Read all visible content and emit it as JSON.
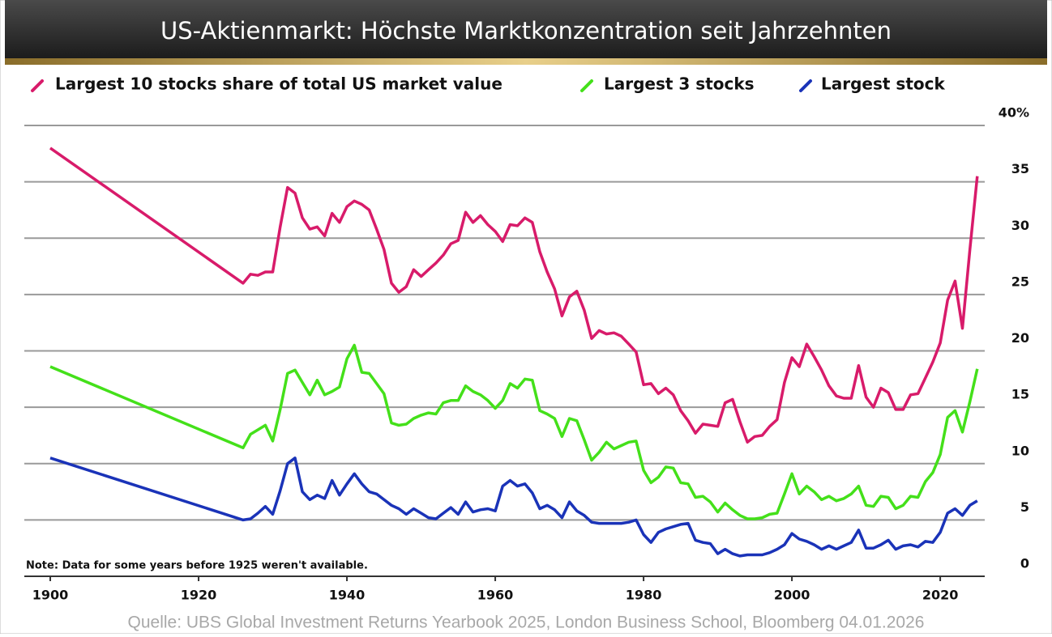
{
  "chart_data": {
    "type": "line",
    "title": "US-Aktienmarkt: Höchste Marktkonzentration seit Jahrzehnten",
    "annotation": "Note: Data for some years before 1925 weren't available.",
    "source": "Quelle: UBS Global Investment Returns Yearbook 2025, London Business School, Bloomberg 04.01.2026",
    "x": [
      1900,
      1926,
      1927,
      1928,
      1929,
      1930,
      1931,
      1932,
      1933,
      1934,
      1935,
      1936,
      1937,
      1938,
      1939,
      1940,
      1941,
      1942,
      1943,
      1944,
      1945,
      1946,
      1947,
      1948,
      1949,
      1950,
      1951,
      1952,
      1953,
      1954,
      1955,
      1956,
      1957,
      1958,
      1959,
      1960,
      1961,
      1962,
      1963,
      1964,
      1965,
      1966,
      1967,
      1968,
      1969,
      1970,
      1971,
      1972,
      1973,
      1974,
      1975,
      1976,
      1977,
      1978,
      1979,
      1980,
      1981,
      1982,
      1983,
      1984,
      1985,
      1986,
      1987,
      1988,
      1989,
      1990,
      1991,
      1992,
      1993,
      1994,
      1995,
      1996,
      1997,
      1998,
      1999,
      2000,
      2001,
      2002,
      2003,
      2004,
      2005,
      2006,
      2007,
      2008,
      2009,
      2010,
      2011,
      2012,
      2013,
      2014,
      2015,
      2016,
      2017,
      2018,
      2019,
      2020,
      2021,
      2022,
      2023,
      2024,
      2025
    ],
    "series": [
      {
        "name": "Largest 10 stocks share of total US market value",
        "color": "#d81b6a",
        "values": [
          38,
          26,
          26.8,
          26.7,
          27,
          27,
          31,
          34.5,
          34,
          31.8,
          30.8,
          31,
          30.2,
          32.2,
          31.4,
          32.8,
          33.3,
          33,
          32.5,
          30.8,
          29,
          26,
          25.2,
          25.7,
          27.2,
          26.6,
          27.2,
          27.8,
          28.5,
          29.5,
          29.8,
          32.3,
          31.4,
          32,
          31.2,
          30.6,
          29.7,
          31.2,
          31.1,
          31.8,
          31.4,
          28.8,
          27,
          25.5,
          23.1,
          24.8,
          25.3,
          23.6,
          21.1,
          21.8,
          21.5,
          21.6,
          21.3,
          20.6,
          19.9,
          17,
          17.1,
          16.2,
          16.7,
          16.1,
          14.7,
          13.8,
          12.7,
          13.5,
          13.4,
          13.3,
          15.4,
          15.7,
          13.7,
          11.9,
          12.4,
          12.5,
          13.3,
          13.9,
          17.2,
          19.4,
          18.6,
          20.6,
          19.5,
          18.3,
          16.9,
          16,
          15.8,
          15.8,
          18.7,
          15.9,
          15,
          16.7,
          16.3,
          14.8,
          14.8,
          16.1,
          16.2,
          17.6,
          19,
          20.7,
          24.5,
          26.2,
          22,
          29,
          35.5
        ]
      },
      {
        "name": "Largest 3 stocks",
        "color": "#44e01a",
        "values": [
          18.6,
          11.4,
          12.6,
          13,
          13.4,
          12,
          14.8,
          18,
          18.3,
          17.2,
          16.1,
          17.4,
          16.1,
          16.4,
          16.8,
          19.3,
          20.5,
          18.1,
          18,
          17.1,
          16.2,
          13.6,
          13.4,
          13.5,
          14,
          14.3,
          14.5,
          14.4,
          15.4,
          15.6,
          15.6,
          16.9,
          16.4,
          16.1,
          15.6,
          14.9,
          15.6,
          17.1,
          16.7,
          17.5,
          17.4,
          14.7,
          14.4,
          14,
          12.4,
          14,
          13.8,
          12.1,
          10.3,
          11,
          11.9,
          11.3,
          11.6,
          11.9,
          12,
          9.4,
          8.3,
          8.8,
          9.7,
          9.6,
          8.3,
          8.2,
          7,
          7.1,
          6.6,
          5.7,
          6.5,
          5.9,
          5.4,
          5.1,
          5.1,
          5.2,
          5.5,
          5.6,
          7.3,
          9.1,
          7.3,
          8,
          7.5,
          6.8,
          7.1,
          6.7,
          6.9,
          7.3,
          8,
          6.3,
          6.2,
          7.1,
          7,
          6,
          6.3,
          7.1,
          7,
          8.4,
          9.2,
          10.8,
          14.1,
          14.7,
          12.8,
          15.5,
          18.4
        ]
      },
      {
        "name": "Largest stock",
        "color": "#1a33b8",
        "values": [
          10.5,
          5,
          5.1,
          5.6,
          6.2,
          5.5,
          7.6,
          10,
          10.5,
          7.5,
          6.8,
          7.2,
          6.9,
          8.5,
          7.2,
          8.2,
          9.1,
          8.2,
          7.5,
          7.3,
          6.8,
          6.3,
          6,
          5.5,
          6,
          5.6,
          5.2,
          5.1,
          5.6,
          6.1,
          5.5,
          6.6,
          5.7,
          5.9,
          6,
          5.8,
          8,
          8.5,
          8,
          8.2,
          7.4,
          6,
          6.3,
          5.9,
          5.2,
          6.6,
          5.8,
          5.4,
          4.8,
          4.7,
          4.7,
          4.7,
          4.7,
          4.8,
          5,
          3.7,
          3,
          3.9,
          4.2,
          4.4,
          4.6,
          4.7,
          3.2,
          3,
          2.9,
          2,
          2.4,
          2,
          1.8,
          1.9,
          1.9,
          1.9,
          2.1,
          2.4,
          2.8,
          3.8,
          3.3,
          3.1,
          2.8,
          2.4,
          2.7,
          2.4,
          2.7,
          3,
          4.1,
          2.5,
          2.5,
          2.8,
          3.2,
          2.4,
          2.7,
          2.8,
          2.6,
          3.1,
          3,
          3.9,
          5.6,
          6,
          5.4,
          6.3,
          6.7
        ]
      }
    ],
    "xlim": [
      1896.5,
      2026
    ],
    "xticks": [
      1900,
      1920,
      1940,
      1960,
      1980,
      2000,
      2020
    ],
    "ylim": [
      0,
      40
    ],
    "yticks": [
      0,
      5,
      10,
      15,
      20,
      25,
      30,
      35,
      {
        "value": 40,
        "label": "40%"
      }
    ],
    "grid": true,
    "legend": "top"
  }
}
